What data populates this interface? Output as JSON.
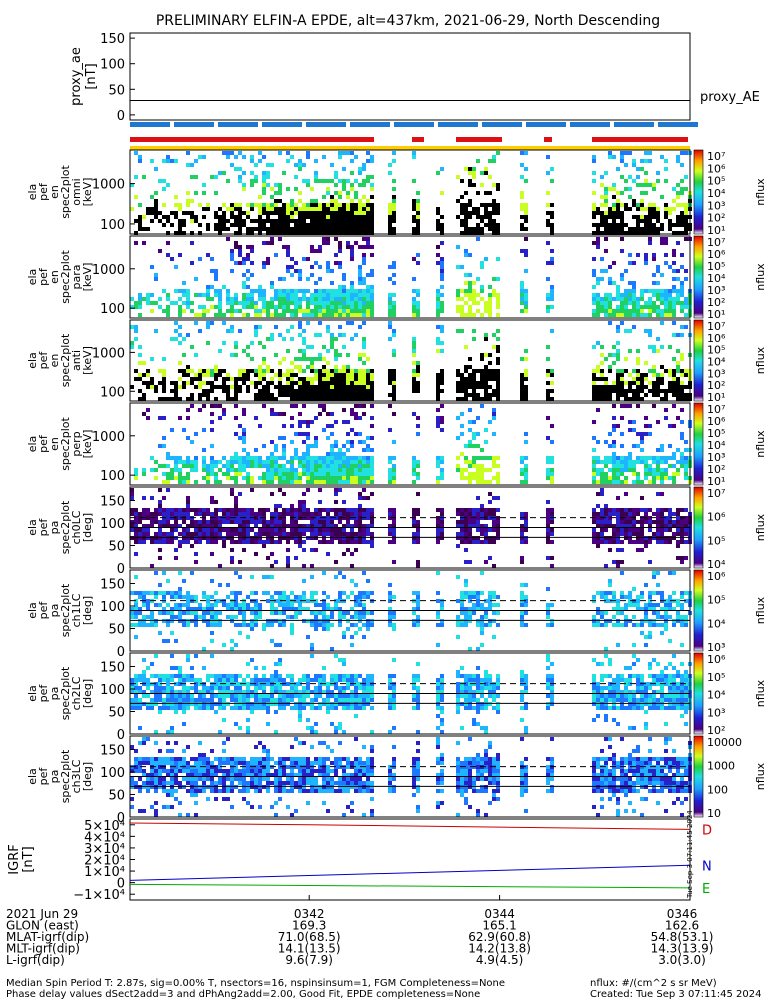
{
  "title": "PRELIMINARY ELFIN-A EPDE, alt=437km, 2021-06-29, North Descending",
  "chart_data": [
    {
      "type": "line",
      "ylabel_lines": [
        "proxy_ae",
        "[nT]"
      ],
      "yticks": [
        "150",
        "100",
        "50",
        "0"
      ],
      "ylim": [
        -10,
        160
      ],
      "series": [
        {
          "name": "proxy_AE",
          "x": [
            0,
            1
          ],
          "values": [
            28,
            28
          ]
        }
      ],
      "label": "proxy_AE"
    },
    {
      "type": "heatmap",
      "ylabel_lines": [
        "ela",
        "pef",
        "en",
        "spec2plot",
        "omni",
        "[keV]"
      ],
      "yticks": [
        "1000",
        "100"
      ],
      "scale": "log",
      "colorbar": {
        "label": "nflux",
        "ticks": [
          "10⁷",
          "10⁶",
          "10⁵",
          "10⁴",
          "10³",
          "10²",
          "10¹"
        ]
      }
    },
    {
      "type": "heatmap",
      "ylabel_lines": [
        "ela",
        "pef",
        "en",
        "spec2plot",
        "para",
        "[keV]"
      ],
      "yticks": [
        "1000",
        "100"
      ],
      "scale": "log",
      "colorbar": {
        "label": "nflux",
        "ticks": [
          "10⁷",
          "10⁶",
          "10⁵",
          "10⁴",
          "10³",
          "10²",
          "10¹"
        ]
      }
    },
    {
      "type": "heatmap",
      "ylabel_lines": [
        "ela",
        "pef",
        "en",
        "spec2plot",
        "anti",
        "[keV]"
      ],
      "yticks": [
        "1000",
        "100"
      ],
      "scale": "log",
      "colorbar": {
        "label": "nflux",
        "ticks": [
          "10⁷",
          "10⁶",
          "10⁵",
          "10⁴",
          "10³",
          "10²",
          "10¹"
        ]
      }
    },
    {
      "type": "heatmap",
      "ylabel_lines": [
        "ela",
        "pef",
        "en",
        "spec2plot",
        "perp",
        "[keV]"
      ],
      "yticks": [
        "1000",
        "100"
      ],
      "scale": "log",
      "colorbar": {
        "label": "nflux",
        "ticks": [
          "10⁷",
          "10⁶",
          "10⁵",
          "10⁴",
          "10³",
          "10²",
          "10¹"
        ]
      }
    },
    {
      "type": "heatmap",
      "ylabel_lines": [
        "ela",
        "pef",
        "pa",
        "spec2plot",
        "ch0LC",
        "[deg]"
      ],
      "yticks": [
        "150",
        "100",
        "50",
        "0"
      ],
      "ylim": [
        0,
        180
      ],
      "colorbar": {
        "label": "nflux",
        "ticks": [
          "10⁷",
          "10⁶",
          "10⁵",
          "10⁴"
        ]
      }
    },
    {
      "type": "heatmap",
      "ylabel_lines": [
        "ela",
        "pef",
        "pa",
        "spec2plot",
        "ch1LC",
        "[deg]"
      ],
      "yticks": [
        "150",
        "100",
        "50",
        "0"
      ],
      "ylim": [
        0,
        180
      ],
      "colorbar": {
        "label": "nflux",
        "ticks": [
          "10⁶",
          "10⁵",
          "10⁴",
          "10³"
        ]
      }
    },
    {
      "type": "heatmap",
      "ylabel_lines": [
        "ela",
        "pef",
        "pa",
        "spec2plot",
        "ch2LC",
        "[deg]"
      ],
      "yticks": [
        "150",
        "100",
        "50",
        "0"
      ],
      "ylim": [
        0,
        180
      ],
      "colorbar": {
        "label": "nflux",
        "ticks": [
          "10⁶",
          "10⁵",
          "10⁴",
          "10³",
          "10²"
        ]
      }
    },
    {
      "type": "heatmap",
      "ylabel_lines": [
        "ela",
        "pef",
        "pa",
        "spec2plot",
        "ch3LC",
        "[deg]"
      ],
      "yticks": [
        "150",
        "100",
        "50",
        "0"
      ],
      "ylim": [
        0,
        180
      ],
      "colorbar": {
        "label": "nflux",
        "ticks": [
          "10000",
          "1000",
          "100",
          "10"
        ]
      }
    },
    {
      "type": "line",
      "ylabel_lines": [
        "IGRF",
        "[nT]"
      ],
      "yticks": [
        "5×10⁴",
        "4×10⁴",
        "3×10⁴",
        "2×10⁴",
        "1×10⁴",
        "0",
        "−1×10⁴"
      ],
      "ylim": [
        -15000,
        55000
      ],
      "series": [
        {
          "name": "D",
          "color": "#cc0000",
          "x": [
            0,
            0.32,
            1
          ],
          "values": [
            51500,
            50000,
            46000
          ]
        },
        {
          "name": "N",
          "color": "#0000cc",
          "x": [
            0,
            1
          ],
          "values": [
            2000,
            15000
          ]
        },
        {
          "name": "E",
          "color": "#00aa00",
          "x": [
            0,
            1
          ],
          "values": [
            -1500,
            -4500
          ]
        }
      ]
    }
  ],
  "xaxis": {
    "row_labels": [
      "2021 Jun 29",
      "GLON (east)",
      "MLAT-igrf(dip)",
      "MLT-igrf(dip)",
      "L-igrf(dip)"
    ],
    "ticks": [
      {
        "pos": 0.32,
        "values": [
          "0342",
          "169.3",
          "71.0(68.5)",
          "14.1(13.5)",
          "9.6(7.9)"
        ]
      },
      {
        "pos": 0.66,
        "values": [
          "0344",
          "165.1",
          "62.9(60.8)",
          "14.2(13.8)",
          "4.9(4.5)"
        ]
      },
      {
        "pos": 1.0,
        "values": [
          "0346",
          "162.6",
          "54.8(53.1)",
          "14.3(13.9)",
          "3.0(3.0)"
        ]
      }
    ]
  },
  "footer": {
    "line1": "Median Spin Period T: 2.87s, sig=0.00% T, nsectors=16, nspinsinsum=1, FGM Completeness=None",
    "line2": "Phase delay values dSect2add=3 and dPhAng2add=2.00, Good Fit, EPDE completeness=None",
    "units": "nflux: #/(cm^2 s sr MeV)",
    "created": "Created: Tue Sep  3 07:11:45 2024"
  },
  "stamp": "Tue Sep 3 07:11:45 2024",
  "colors": {
    "panel_border": "#000000",
    "blue_bar": "#1e78d2",
    "red_bar": "#dd1111",
    "yellow_bar": "#ffcc00"
  }
}
